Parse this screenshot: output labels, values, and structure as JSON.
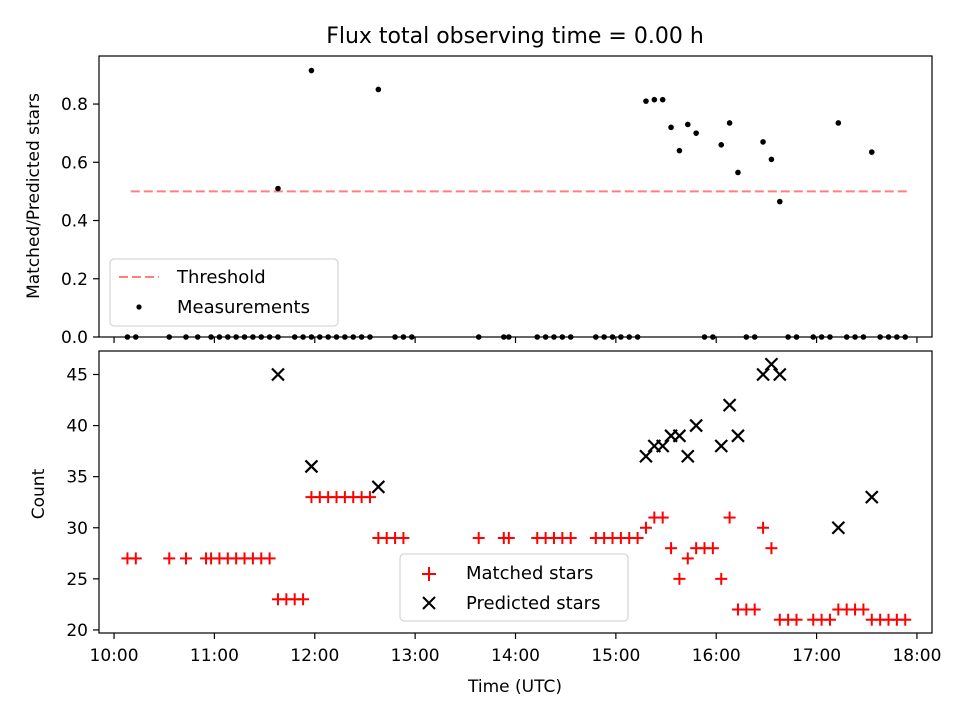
{
  "title": "Flux total observing time = 0.00 h",
  "chart_data": [
    {
      "type": "scatter",
      "panel": "top",
      "xlabel": "",
      "ylabel": "Matched/Predicted stars",
      "xlim": [
        "09:51",
        "18:09"
      ],
      "ylim": [
        0,
        0.965
      ],
      "yticks": [
        "0.0",
        "0.2",
        "0.4",
        "0.6",
        "0.8"
      ],
      "legend_placement": "lower-left",
      "threshold": {
        "name": "Threshold",
        "value": 0.5,
        "x": [
          "10:10",
          "17:54"
        ],
        "color": "#ff7f7f",
        "style": "dashed"
      },
      "series": [
        {
          "name": "Measurements",
          "color": "#000000",
          "points": [
            [
              "10:08",
              0
            ],
            [
              "10:13",
              0
            ],
            [
              "10:33",
              0
            ],
            [
              "10:43",
              0
            ],
            [
              "10:50",
              0
            ],
            [
              "10:58",
              0
            ],
            [
              "11:03",
              0
            ],
            [
              "11:08",
              0
            ],
            [
              "11:13",
              0
            ],
            [
              "11:18",
              0
            ],
            [
              "11:23",
              0
            ],
            [
              "11:28",
              0
            ],
            [
              "11:33",
              0
            ],
            [
              "11:38",
              0
            ],
            [
              "11:38",
              0.51
            ],
            [
              "11:48",
              0
            ],
            [
              "11:53",
              0
            ],
            [
              "11:58",
              0.915
            ],
            [
              "11:58",
              0
            ],
            [
              "12:03",
              0
            ],
            [
              "12:08",
              0
            ],
            [
              "12:13",
              0
            ],
            [
              "12:18",
              0
            ],
            [
              "12:23",
              0
            ],
            [
              "12:28",
              0
            ],
            [
              "12:33",
              0
            ],
            [
              "12:38",
              0.85
            ],
            [
              "12:48",
              0
            ],
            [
              "12:53",
              0
            ],
            [
              "12:58",
              0
            ],
            [
              "13:38",
              0
            ],
            [
              "13:53",
              0
            ],
            [
              "13:56",
              0
            ],
            [
              "14:13",
              0
            ],
            [
              "14:18",
              0
            ],
            [
              "14:23",
              0
            ],
            [
              "14:28",
              0
            ],
            [
              "14:33",
              0
            ],
            [
              "14:48",
              0
            ],
            [
              "14:53",
              0
            ],
            [
              "14:58",
              0
            ],
            [
              "15:03",
              0
            ],
            [
              "15:08",
              0
            ],
            [
              "15:13",
              0
            ],
            [
              "15:18",
              0.81
            ],
            [
              "15:23",
              0.815
            ],
            [
              "15:28",
              0.815
            ],
            [
              "15:33",
              0.72
            ],
            [
              "15:38",
              0.64
            ],
            [
              "15:43",
              0.73
            ],
            [
              "15:48",
              0.7
            ],
            [
              "15:53",
              0
            ],
            [
              "15:58",
              0
            ],
            [
              "16:03",
              0.66
            ],
            [
              "16:08",
              0.735
            ],
            [
              "16:13",
              0.565
            ],
            [
              "16:18",
              0
            ],
            [
              "16:23",
              0
            ],
            [
              "16:28",
              0.67
            ],
            [
              "16:33",
              0.61
            ],
            [
              "16:38",
              0.465
            ],
            [
              "16:43",
              0
            ],
            [
              "16:48",
              0
            ],
            [
              "16:58",
              0
            ],
            [
              "17:03",
              0
            ],
            [
              "17:08",
              0
            ],
            [
              "17:13",
              0.735
            ],
            [
              "17:18",
              0
            ],
            [
              "17:23",
              0
            ],
            [
              "17:28",
              0
            ],
            [
              "17:33",
              0.635
            ],
            [
              "17:38",
              0
            ],
            [
              "17:43",
              0
            ],
            [
              "17:48",
              0
            ],
            [
              "17:53",
              0
            ]
          ]
        }
      ]
    },
    {
      "type": "scatter",
      "panel": "bottom",
      "xlabel": "Time (UTC)",
      "ylabel": "Count",
      "xlim": [
        "09:51",
        "18:09"
      ],
      "ylim": [
        19.7,
        47.3
      ],
      "yticks": [
        "20",
        "25",
        "30",
        "35",
        "40",
        "45"
      ],
      "xticks": [
        "10:00",
        "11:00",
        "12:00",
        "13:00",
        "14:00",
        "15:00",
        "16:00",
        "17:00",
        "18:00"
      ],
      "legend_placement": "lower-center",
      "series": [
        {
          "name": "Matched stars",
          "color": "#ff0000",
          "marker": "plus",
          "points": [
            [
              "10:08",
              27
            ],
            [
              "10:13",
              27
            ],
            [
              "10:33",
              27
            ],
            [
              "10:43",
              27
            ],
            [
              "10:55",
              27
            ],
            [
              "10:58",
              27
            ],
            [
              "11:03",
              27
            ],
            [
              "11:08",
              27
            ],
            [
              "11:13",
              27
            ],
            [
              "11:18",
              27
            ],
            [
              "11:23",
              27
            ],
            [
              "11:28",
              27
            ],
            [
              "11:33",
              27
            ],
            [
              "11:38",
              23
            ],
            [
              "11:43",
              23
            ],
            [
              "11:48",
              23
            ],
            [
              "11:53",
              23
            ],
            [
              "11:58",
              33
            ],
            [
              "12:03",
              33
            ],
            [
              "12:08",
              33
            ],
            [
              "12:13",
              33
            ],
            [
              "12:18",
              33
            ],
            [
              "12:23",
              33
            ],
            [
              "12:28",
              33
            ],
            [
              "12:33",
              33
            ],
            [
              "12:38",
              29
            ],
            [
              "12:43",
              29
            ],
            [
              "12:48",
              29
            ],
            [
              "12:53",
              29
            ],
            [
              "13:38",
              29
            ],
            [
              "13:53",
              29
            ],
            [
              "13:56",
              29
            ],
            [
              "14:13",
              29
            ],
            [
              "14:18",
              29
            ],
            [
              "14:23",
              29
            ],
            [
              "14:28",
              29
            ],
            [
              "14:33",
              29
            ],
            [
              "14:48",
              29
            ],
            [
              "14:53",
              29
            ],
            [
              "14:58",
              29
            ],
            [
              "15:03",
              29
            ],
            [
              "15:08",
              29
            ],
            [
              "15:13",
              29
            ],
            [
              "15:18",
              30
            ],
            [
              "15:23",
              31
            ],
            [
              "15:28",
              31
            ],
            [
              "15:33",
              28
            ],
            [
              "15:38",
              25
            ],
            [
              "15:43",
              27
            ],
            [
              "15:48",
              28
            ],
            [
              "15:53",
              28
            ],
            [
              "15:58",
              28
            ],
            [
              "16:03",
              25
            ],
            [
              "16:08",
              31
            ],
            [
              "16:13",
              22
            ],
            [
              "16:18",
              22
            ],
            [
              "16:23",
              22
            ],
            [
              "16:28",
              30
            ],
            [
              "16:33",
              28
            ],
            [
              "16:38",
              21
            ],
            [
              "16:43",
              21
            ],
            [
              "16:48",
              21
            ],
            [
              "16:58",
              21
            ],
            [
              "17:03",
              21
            ],
            [
              "17:08",
              21
            ],
            [
              "17:13",
              22
            ],
            [
              "17:18",
              22
            ],
            [
              "17:23",
              22
            ],
            [
              "17:28",
              22
            ],
            [
              "17:33",
              21
            ],
            [
              "17:38",
              21
            ],
            [
              "17:43",
              21
            ],
            [
              "17:48",
              21
            ],
            [
              "17:53",
              21
            ]
          ]
        },
        {
          "name": "Predicted stars",
          "color": "#000000",
          "marker": "x",
          "points": [
            [
              "11:38",
              45
            ],
            [
              "11:58",
              36
            ],
            [
              "12:38",
              34
            ],
            [
              "15:18",
              37
            ],
            [
              "15:23",
              38
            ],
            [
              "15:28",
              38
            ],
            [
              "15:33",
              39
            ],
            [
              "15:38",
              39
            ],
            [
              "15:43",
              37
            ],
            [
              "15:48",
              40
            ],
            [
              "16:03",
              38
            ],
            [
              "16:08",
              42
            ],
            [
              "16:13",
              39
            ],
            [
              "16:28",
              45
            ],
            [
              "16:33",
              46
            ],
            [
              "16:38",
              45
            ],
            [
              "17:13",
              30
            ],
            [
              "17:33",
              33
            ]
          ]
        }
      ]
    }
  ]
}
